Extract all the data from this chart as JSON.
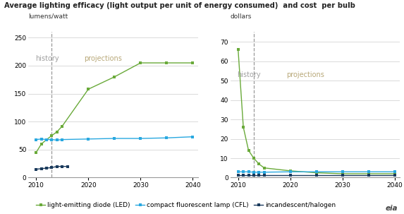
{
  "title": "Average lighting efficacy (light output per unit of energy consumed)  and cost  per bulb",
  "left_ylabel": "lumens/watt",
  "right_ylabel": "dollars",
  "history_label": "history",
  "projections_label": "projections",
  "divider_year": 2013,
  "led_color": "#6aaa3a",
  "cfl_color": "#29a8e0",
  "incandescent_color": "#1a3a5c",
  "legend_led": "light-emitting diode (LED)",
  "legend_cfl": "compact fluorescent lamp (CFL)",
  "legend_inc": "incandescent/halogen",
  "left_led_x": [
    2010,
    2011,
    2012,
    2013,
    2014,
    2015,
    2020,
    2025,
    2030,
    2035,
    2040
  ],
  "left_led_y": [
    45,
    60,
    68,
    75,
    82,
    92,
    158,
    180,
    205,
    205,
    205
  ],
  "left_cfl_x": [
    2010,
    2011,
    2012,
    2013,
    2014,
    2015,
    2020,
    2025,
    2030,
    2035,
    2040
  ],
  "left_cfl_y": [
    68,
    69,
    68,
    68,
    67,
    68,
    69,
    70,
    70,
    71,
    73
  ],
  "left_inc_x": [
    2010,
    2011,
    2012,
    2013,
    2014,
    2015,
    2016
  ],
  "left_inc_y": [
    15,
    16,
    17,
    18,
    20,
    20,
    20
  ],
  "right_led_x": [
    2010,
    2011,
    2012,
    2013,
    2014,
    2015,
    2020,
    2025,
    2030,
    2035,
    2040
  ],
  "right_led_y": [
    66,
    26,
    14,
    10,
    7,
    5,
    3.5,
    2.5,
    2,
    2,
    2
  ],
  "right_cfl_x": [
    2010,
    2011,
    2012,
    2013,
    2014,
    2015,
    2020,
    2025,
    2030,
    2035,
    2040
  ],
  "right_cfl_y": [
    3,
    3,
    3,
    2.8,
    2.8,
    2.8,
    3,
    3,
    3,
    3,
    3
  ],
  "right_inc_x": [
    2010,
    2011,
    2012,
    2013,
    2014,
    2015,
    2020,
    2025,
    2030,
    2035,
    2040
  ],
  "right_inc_y": [
    1.2,
    1.2,
    1.2,
    1.2,
    1.2,
    1.2,
    1.2,
    1.2,
    1.2,
    1.2,
    1.2
  ],
  "left_xlim": [
    2008.5,
    2041
  ],
  "left_ylim": [
    0,
    260
  ],
  "left_yticks": [
    0,
    50,
    100,
    150,
    200,
    250
  ],
  "right_xlim": [
    2008.5,
    2041
  ],
  "right_ylim": [
    0,
    75
  ],
  "right_yticks": [
    0,
    10,
    20,
    30,
    40,
    50,
    60,
    70
  ],
  "xticks": [
    2010,
    2020,
    2030,
    2040
  ],
  "background_color": "#ffffff",
  "grid_color": "#cccccc",
  "history_color": "#a0a0a0",
  "projections_color": "#b8a878"
}
